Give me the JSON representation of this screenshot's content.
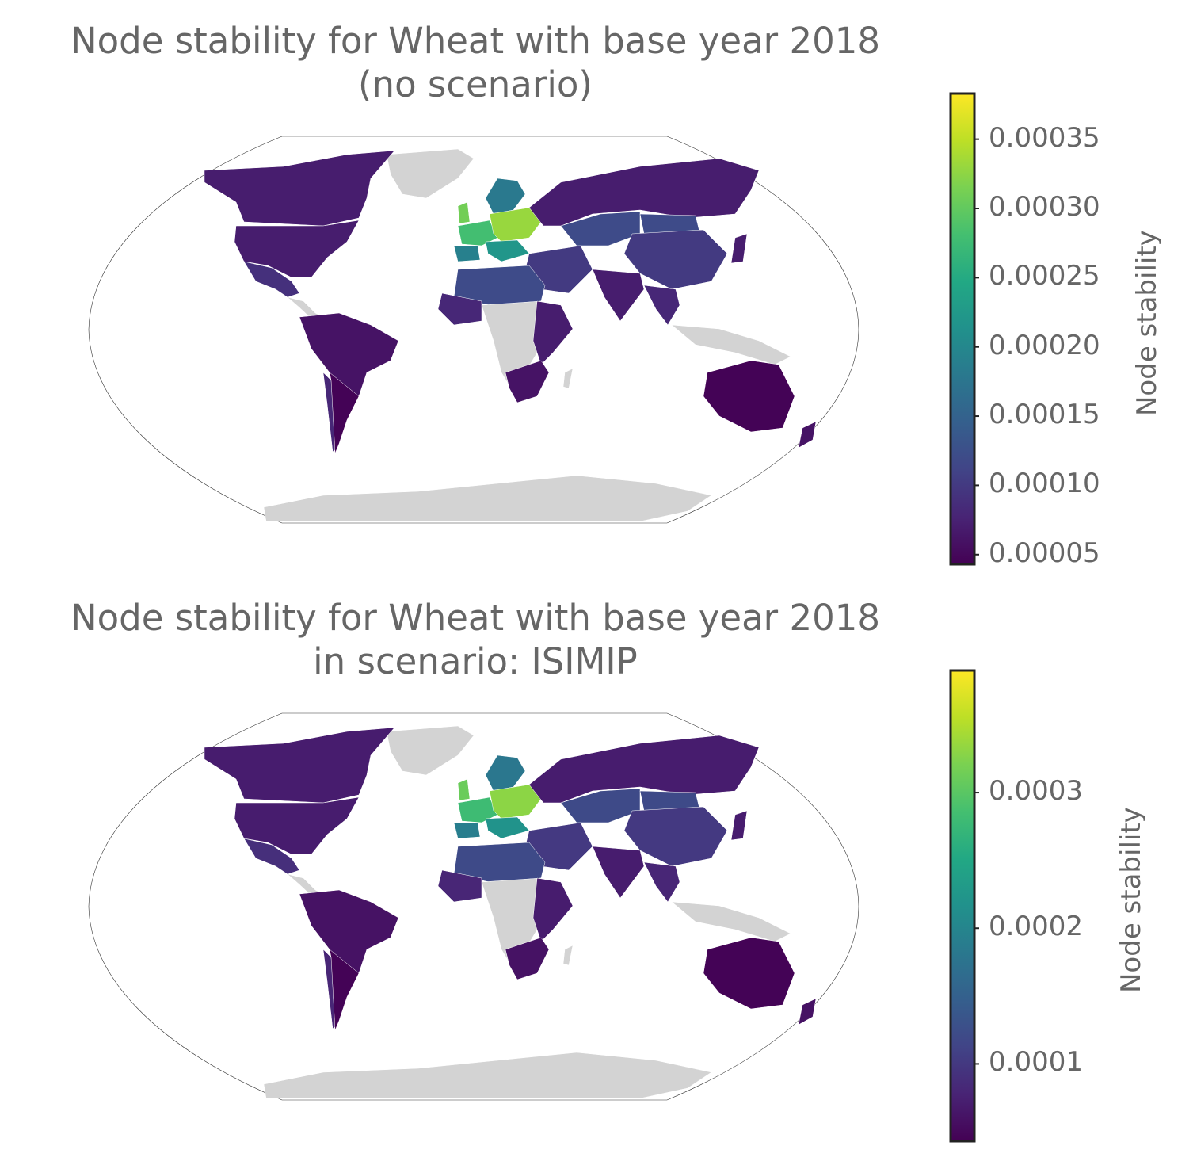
{
  "colormap": "viridis",
  "colors": {
    "no_data": "#d3d3d3",
    "frame": "#333333",
    "ocean": "#ffffff",
    "text": "#666666"
  },
  "panels": [
    {
      "title_line1": "Node stability for Wheat with base year 2018",
      "title_line2": "(no scenario)",
      "colorbar": {
        "title": "Node stability",
        "min": 4.3e-05,
        "max": 0.000383,
        "ticks": [
          5e-05,
          0.0001,
          0.00015,
          0.0002,
          0.00025,
          0.0003,
          0.00035
        ],
        "tick_labels": [
          "0.00005",
          "0.00010",
          "0.00015",
          "0.00020",
          "0.00025",
          "0.00030",
          "0.00035"
        ]
      }
    },
    {
      "title_line1": "Node stability for Wheat with base year 2018",
      "title_line2": "in scenario: ISIMIP",
      "colorbar": {
        "title": "Node stability",
        "min": 4.3e-05,
        "max": 0.00039,
        "ticks": [
          0.0001,
          0.0002,
          0.0003
        ],
        "tick_labels": [
          "0.0001",
          "0.0002",
          "0.0003"
        ]
      }
    }
  ],
  "map_values": {
    "north_america": 7e-05,
    "canada": 7e-05,
    "mexico": 9e-05,
    "south_america": 6e-05,
    "argentina": 4.5e-05,
    "chile": 8e-05,
    "western_europe": 0.00028,
    "central_europe": 0.00033,
    "uk": 0.00031,
    "spain": 0.00019,
    "scandinavia": 0.00018,
    "italy_balkans": 0.00022,
    "russia": 7e-05,
    "kazakhstan_region": 0.00012,
    "mongolia": 0.00012,
    "china": 0.0001,
    "india": 7e-05,
    "middle_east": 0.0001,
    "north_africa": 0.00012,
    "west_africa": 8e-05,
    "east_africa": 7e-05,
    "southern_africa": 6e-05,
    "southeast_asia": 8e-05,
    "japan": 7e-05,
    "australia": 4.5e-05,
    "new_zealand": 6e-05
  }
}
